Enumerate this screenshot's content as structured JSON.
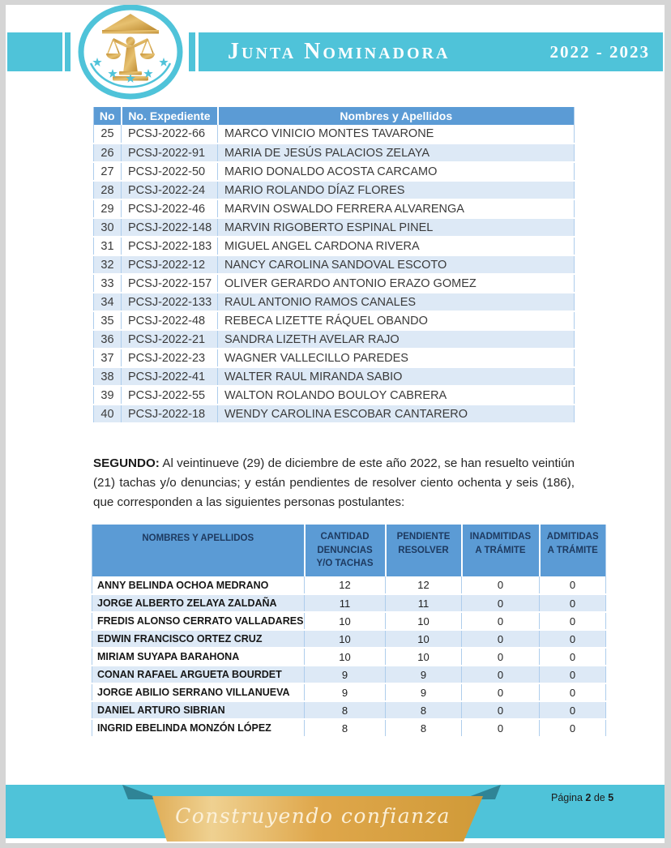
{
  "header": {
    "brand": "Junta Nominadora",
    "years": "2022 - 2023"
  },
  "table1": {
    "columns": [
      "No",
      "No. Expediente",
      "Nombres y Apellidos"
    ],
    "rows": [
      {
        "no": "25",
        "exp": "PCSJ-2022-66",
        "name": "MARCO VINICIO MONTES TAVARONE"
      },
      {
        "no": "26",
        "exp": "PCSJ-2022-91",
        "name": "MARIA DE JESÚS PALACIOS ZELAYA"
      },
      {
        "no": "27",
        "exp": "PCSJ-2022-50",
        "name": "MARIO DONALDO ACOSTA CARCAMO"
      },
      {
        "no": "28",
        "exp": "PCSJ-2022-24",
        "name": "MARIO ROLANDO DÍAZ FLORES"
      },
      {
        "no": "29",
        "exp": "PCSJ-2022-46",
        "name": "MARVIN OSWALDO FERRERA ALVARENGA"
      },
      {
        "no": "30",
        "exp": "PCSJ-2022-148",
        "name": "MARVIN RIGOBERTO ESPINAL PINEL"
      },
      {
        "no": "31",
        "exp": "PCSJ-2022-183",
        "name": "MIGUEL ANGEL CARDONA RIVERA"
      },
      {
        "no": "32",
        "exp": "PCSJ-2022-12",
        "name": "NANCY CAROLINA SANDOVAL ESCOTO"
      },
      {
        "no": "33",
        "exp": "PCSJ-2022-157",
        "name": "OLIVER GERARDO ANTONIO ERAZO GOMEZ"
      },
      {
        "no": "34",
        "exp": "PCSJ-2022-133",
        "name": "RAUL ANTONIO RAMOS CANALES"
      },
      {
        "no": "35",
        "exp": "PCSJ-2022-48",
        "name": "REBECA LIZETTE RÁQUEL OBANDO"
      },
      {
        "no": "36",
        "exp": "PCSJ-2022-21",
        "name": "SANDRA LIZETH AVELAR RAJO"
      },
      {
        "no": "37",
        "exp": "PCSJ-2022-23",
        "name": "WAGNER VALLECILLO PAREDES"
      },
      {
        "no": "38",
        "exp": "PCSJ-2022-41",
        "name": "WALTER RAUL MIRANDA SABIO"
      },
      {
        "no": "39",
        "exp": "PCSJ-2022-55",
        "name": "WALTON ROLANDO BOULOY CABRERA"
      },
      {
        "no": "40",
        "exp": "PCSJ-2022-18",
        "name": "WENDY CAROLINA ESCOBAR CANTARERO"
      }
    ]
  },
  "section2": {
    "label": "SEGUNDO:",
    "text": " Al veintinueve (29) de diciembre de este año 2022, se han resuelto veintiún (21) tachas y/o denuncias; y están pendientes de resolver ciento ochenta y seis (186), que corresponden a las siguientes personas postulantes:"
  },
  "table2": {
    "columns": [
      "NOMBRES Y APELLIDOS",
      "CANTIDAD DENUNCIAS Y/O TACHAS",
      "PENDIENTE RESOLVER",
      "INADMITIDAS A TRÁMITE",
      "ADMITIDAS A TRÁMITE"
    ],
    "rows": [
      {
        "name": "ANNY BELINDA OCHOA MEDRANO",
        "cantidad": "12",
        "pendiente": "12",
        "inadmitidas": "0",
        "admitidas": "0"
      },
      {
        "name": "JORGE ALBERTO ZELAYA ZALDAÑA",
        "cantidad": "11",
        "pendiente": "11",
        "inadmitidas": "0",
        "admitidas": "0"
      },
      {
        "name": "FREDIS ALONSO CERRATO VALLADARES",
        "cantidad": "10",
        "pendiente": "10",
        "inadmitidas": "0",
        "admitidas": "0"
      },
      {
        "name": "EDWIN FRANCISCO ORTEZ CRUZ",
        "cantidad": "10",
        "pendiente": "10",
        "inadmitidas": "0",
        "admitidas": "0"
      },
      {
        "name": "MIRIAM SUYAPA BARAHONA",
        "cantidad": "10",
        "pendiente": "10",
        "inadmitidas": "0",
        "admitidas": "0"
      },
      {
        "name": "CONAN RAFAEL ARGUETA BOURDET",
        "cantidad": "9",
        "pendiente": "9",
        "inadmitidas": "0",
        "admitidas": "0"
      },
      {
        "name": "JORGE ABILIO SERRANO VILLANUEVA",
        "cantidad": "9",
        "pendiente": "9",
        "inadmitidas": "0",
        "admitidas": "0"
      },
      {
        "name": "DANIEL ARTURO SIBRIAN",
        "cantidad": "8",
        "pendiente": "8",
        "inadmitidas": "0",
        "admitidas": "0"
      },
      {
        "name": "INGRID EBELINDA MONZÓN LÓPEZ",
        "cantidad": "8",
        "pendiente": "8",
        "inadmitidas": "0",
        "admitidas": "0"
      }
    ]
  },
  "footer": {
    "slogan": "Construyendo confianza",
    "page": {
      "label": "Página",
      "current": "2",
      "of": "de",
      "total": "5"
    }
  },
  "colors": {
    "teal": "#4fc3d9",
    "teal_dark": "#2f8496",
    "table_header_blue": "#5b9bd5",
    "row_alt_blue": "#dde9f6",
    "gold": "#dfa94e",
    "navy_text": "#1e3a60"
  }
}
